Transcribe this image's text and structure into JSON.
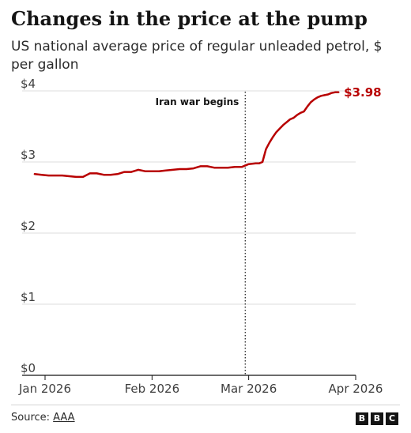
{
  "chart_data": {
    "type": "line",
    "title": "Changes in the price at the pump",
    "subtitle": "US national average price of regular unleaded petrol, $ per gallon",
    "y_tick_labels": [
      "$0",
      "$1",
      "$2",
      "$3",
      "$4"
    ],
    "y_ticks": [
      0,
      1,
      2,
      3,
      4
    ],
    "ylim": [
      0,
      4.1
    ],
    "x_tick_labels": [
      "Jan 2026",
      "Feb 2026",
      "Mar 2026",
      "Apr 2026"
    ],
    "x_ticks": [
      "2026-01-01",
      "2026-02-01",
      "2026-03-01",
      "2026-04-01"
    ],
    "xlim": [
      "2026-01-01",
      "2026-04-01"
    ],
    "grid": true,
    "annotation": {
      "label": "Iran war begins",
      "x": "2026-02-28"
    },
    "end_label": "$3.98",
    "line_color": "#b80000",
    "series": [
      {
        "x": [
          "2025-12-29",
          "2025-12-31",
          "2026-01-02",
          "2026-01-04",
          "2026-01-06",
          "2026-01-08",
          "2026-01-10",
          "2026-01-12",
          "2026-01-14",
          "2026-01-16",
          "2026-01-18",
          "2026-01-20",
          "2026-01-22",
          "2026-01-24",
          "2026-01-26",
          "2026-01-28",
          "2026-01-30",
          "2026-02-01",
          "2026-02-03",
          "2026-02-05",
          "2026-02-07",
          "2026-02-09",
          "2026-02-11",
          "2026-02-13",
          "2026-02-15",
          "2026-02-17",
          "2026-02-19",
          "2026-02-21",
          "2026-02-23",
          "2026-02-25",
          "2026-02-27",
          "2026-03-01",
          "2026-03-03",
          "2026-03-04",
          "2026-03-05",
          "2026-03-06",
          "2026-03-07",
          "2026-03-08",
          "2026-03-09",
          "2026-03-10",
          "2026-03-11",
          "2026-03-12",
          "2026-03-13",
          "2026-03-14",
          "2026-03-15",
          "2026-03-16",
          "2026-03-17",
          "2026-03-18",
          "2026-03-19",
          "2026-03-20",
          "2026-03-21",
          "2026-03-22",
          "2026-03-23",
          "2026-03-24",
          "2026-03-25",
          "2026-03-26",
          "2026-03-27"
        ],
        "values": [
          2.83,
          2.82,
          2.81,
          2.81,
          2.81,
          2.8,
          2.79,
          2.79,
          2.84,
          2.84,
          2.82,
          2.82,
          2.83,
          2.86,
          2.86,
          2.89,
          2.87,
          2.87,
          2.87,
          2.88,
          2.89,
          2.9,
          2.9,
          2.91,
          2.94,
          2.94,
          2.92,
          2.92,
          2.92,
          2.93,
          2.93,
          2.97,
          2.98,
          2.98,
          3.0,
          3.18,
          3.27,
          3.35,
          3.42,
          3.47,
          3.52,
          3.56,
          3.6,
          3.62,
          3.66,
          3.69,
          3.71,
          3.78,
          3.84,
          3.88,
          3.91,
          3.93,
          3.94,
          3.95,
          3.97,
          3.98,
          3.98
        ]
      }
    ]
  },
  "footer": {
    "source_prefix": "Source: ",
    "source_link": "AAA",
    "logo_letters": [
      "B",
      "B",
      "C"
    ]
  }
}
